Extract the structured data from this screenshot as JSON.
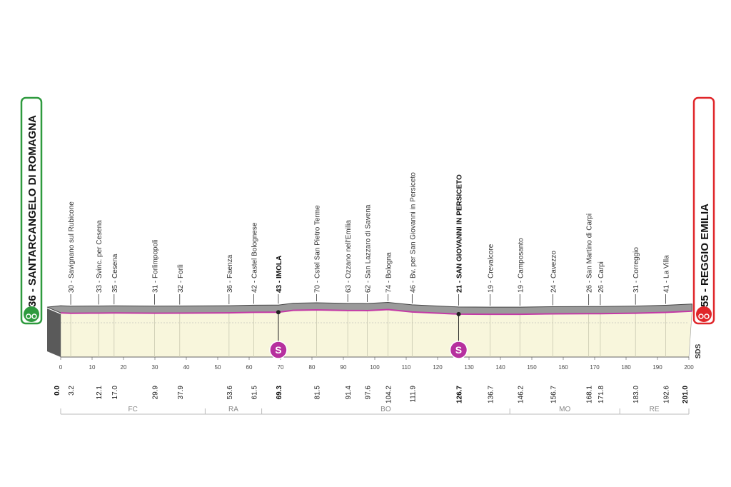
{
  "chart_data": {
    "type": "area",
    "start": {
      "label": "36 - SANTARCANGELO DI ROMAGNA",
      "altitude": 36,
      "km": 0.0,
      "color": "#2e9a3e"
    },
    "finish": {
      "label": "55 - REGGIO EMILIA",
      "altitude": 55,
      "km": 201.0,
      "color": "#e0262a"
    },
    "xlim": [
      0,
      200
    ],
    "axis_ticks": [
      0,
      10,
      20,
      30,
      40,
      50,
      60,
      70,
      80,
      90,
      100,
      110,
      120,
      130,
      140,
      150,
      160,
      170,
      180,
      190,
      200
    ],
    "waypoints": [
      {
        "label": "30 - Savignano sul Rubicone",
        "km": 3.2,
        "km_label": "3.2",
        "bold": false
      },
      {
        "label": "33 - Svinc. per Cesena",
        "km": 12.1,
        "km_label": "12.1",
        "bold": false
      },
      {
        "label": "35 - Cesena",
        "km": 17.0,
        "km_label": "17.0",
        "bold": false
      },
      {
        "label": "31 - Forlimpopoli",
        "km": 29.9,
        "km_label": "29.9",
        "bold": false
      },
      {
        "label": "32 - Forlì",
        "km": 37.9,
        "km_label": "37.9",
        "bold": false
      },
      {
        "label": "36 - Faenza",
        "km": 53.6,
        "km_label": "53.6",
        "bold": false
      },
      {
        "label": "42 - Castel Bolognese",
        "km": 61.5,
        "km_label": "61.5",
        "bold": false
      },
      {
        "label": "43 - IMOLA",
        "km": 69.3,
        "km_label": "69.3",
        "bold": true
      },
      {
        "label": "70 - Cstel San Pietro Terme",
        "km": 81.5,
        "km_label": "81.5",
        "bold": false
      },
      {
        "label": "63 - Ozzano nell'Emilia",
        "km": 91.4,
        "km_label": "91.4",
        "bold": false
      },
      {
        "label": "62 - San Lazzaro di Savena",
        "km": 97.6,
        "km_label": "97.6",
        "bold": false
      },
      {
        "label": "74 - Bologna",
        "km": 104.2,
        "km_label": "104.2",
        "bold": false
      },
      {
        "label": "46 - Bv. per San Giovanni in Persiceto",
        "km": 111.9,
        "km_label": "111.9",
        "bold": false
      },
      {
        "label": "21 - SAN GIOVANNI IN PERSICETO",
        "km": 126.7,
        "km_label": "126.7",
        "bold": true
      },
      {
        "label": "19 - Crevalcore",
        "km": 136.7,
        "km_label": "136.7",
        "bold": false
      },
      {
        "label": "19 - Camposanto",
        "km": 146.2,
        "km_label": "146.2",
        "bold": false
      },
      {
        "label": "24 - Cavezzo",
        "km": 156.7,
        "km_label": "156.7",
        "bold": false
      },
      {
        "label": "26 - San Martino di Carpi",
        "km": 168.1,
        "km_label": "168.1",
        "bold": false
      },
      {
        "label": "26 - Carpi",
        "km": 171.8,
        "km_label": "171.8",
        "bold": false
      },
      {
        "label": "31 - Correggio",
        "km": 183.0,
        "km_label": "183.0",
        "bold": false
      },
      {
        "label": "41 - La Villa",
        "km": 192.6,
        "km_label": "192.6",
        "bold": false
      }
    ],
    "start_km_label": "0.0",
    "finish_km_label": "201.0",
    "sprints": [
      {
        "km": 69.3,
        "symbol": "S"
      },
      {
        "km": 126.7,
        "symbol": "S"
      }
    ],
    "profile": [
      [
        0,
        36
      ],
      [
        3.2,
        30
      ],
      [
        12.1,
        33
      ],
      [
        17,
        35
      ],
      [
        29.9,
        31
      ],
      [
        37.9,
        32
      ],
      [
        53.6,
        36
      ],
      [
        61.5,
        42
      ],
      [
        69.3,
        43
      ],
      [
        74,
        65
      ],
      [
        81.5,
        70
      ],
      [
        91.4,
        63
      ],
      [
        97.6,
        62
      ],
      [
        104.2,
        74
      ],
      [
        111.9,
        46
      ],
      [
        126.7,
        21
      ],
      [
        136.7,
        19
      ],
      [
        146.2,
        19
      ],
      [
        156.7,
        24
      ],
      [
        168.1,
        26
      ],
      [
        171.8,
        26
      ],
      [
        183,
        31
      ],
      [
        192.6,
        41
      ],
      [
        201,
        55
      ]
    ],
    "provinces": [
      {
        "label": "FC",
        "from": 0,
        "to": 46
      },
      {
        "label": "RA",
        "from": 46,
        "to": 64
      },
      {
        "label": "BO",
        "from": 64,
        "to": 143
      },
      {
        "label": "MO",
        "from": 143,
        "to": 178
      },
      {
        "label": "RE",
        "from": 178,
        "to": 201
      }
    ],
    "colors": {
      "profile_top": "#9a9a9a",
      "profile_face": "#f8f6dc",
      "route_line": "#c33aa6",
      "sprint": "#b6309e"
    },
    "brand": "SDS"
  }
}
